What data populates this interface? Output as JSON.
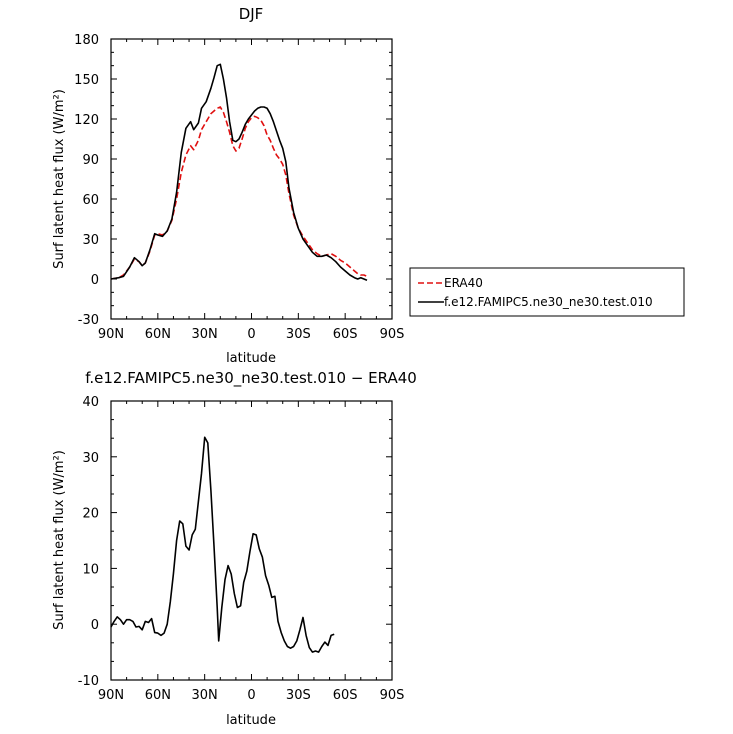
{
  "chart_data": [
    {
      "type": "line",
      "title": "DJF",
      "xlabel": "latitude",
      "ylabel": "Surf latent heat flux (W/m²)",
      "xlim": [
        -90,
        90
      ],
      "ylim": [
        -30,
        180
      ],
      "x_ticks": [
        {
          "value": -90,
          "label": "90N"
        },
        {
          "value": -60,
          "label": "60N"
        },
        {
          "value": -30,
          "label": "30N"
        },
        {
          "value": 0,
          "label": "0"
        },
        {
          "value": 30,
          "label": "30S"
        },
        {
          "value": 60,
          "label": "60S"
        },
        {
          "value": 90,
          "label": "90S"
        }
      ],
      "y_ticks": [
        -30,
        0,
        30,
        60,
        90,
        120,
        150,
        180
      ],
      "legend_position": "right",
      "series": [
        {
          "name": "ERA40",
          "color": "#e01010",
          "dash": "dashed",
          "points": [
            [
              -90,
              0
            ],
            [
              -85,
              1
            ],
            [
              -82,
              3
            ],
            [
              -78,
              9
            ],
            [
              -75,
              15
            ],
            [
              -72,
              13
            ],
            [
              -70,
              10
            ],
            [
              -68,
              12
            ],
            [
              -65,
              21
            ],
            [
              -62,
              33
            ],
            [
              -60,
              34
            ],
            [
              -57,
              33
            ],
            [
              -54,
              36
            ],
            [
              -51,
              44
            ],
            [
              -48,
              60
            ],
            [
              -45,
              80
            ],
            [
              -42,
              93
            ],
            [
              -39,
              100
            ],
            [
              -37,
              97
            ],
            [
              -34,
              104
            ],
            [
              -32,
              112
            ],
            [
              -29,
              118
            ],
            [
              -26,
              124
            ],
            [
              -24,
              126
            ],
            [
              -22,
              128
            ],
            [
              -20,
              129
            ],
            [
              -18,
              125
            ],
            [
              -16,
              118
            ],
            [
              -14,
              110
            ],
            [
              -12,
              100
            ],
            [
              -10,
              96
            ],
            [
              -8,
              98
            ],
            [
              -6,
              105
            ],
            [
              -4,
              113
            ],
            [
              -2,
              118
            ],
            [
              0,
              121
            ],
            [
              2,
              122
            ],
            [
              4,
              121
            ],
            [
              6,
              119
            ],
            [
              8,
              115
            ],
            [
              10,
              108
            ],
            [
              12,
              104
            ],
            [
              14,
              98
            ],
            [
              16,
              93
            ],
            [
              18,
              90
            ],
            [
              20,
              86
            ],
            [
              22,
              78
            ],
            [
              24,
              64
            ],
            [
              27,
              48
            ],
            [
              30,
              38
            ],
            [
              33,
              32
            ],
            [
              36,
              27
            ],
            [
              39,
              22
            ],
            [
              42,
              19
            ],
            [
              45,
              17
            ],
            [
              48,
              18
            ],
            [
              51,
              19
            ],
            [
              54,
              17
            ],
            [
              57,
              14
            ],
            [
              60,
              12
            ],
            [
              63,
              9
            ],
            [
              66,
              6
            ],
            [
              68,
              4
            ],
            [
              70,
              3
            ],
            [
              72,
              3
            ],
            [
              74,
              2
            ]
          ]
        },
        {
          "name": "f.e12.FAMIPC5.ne30_ne30.test.010",
          "color": "#000000",
          "dash": "solid",
          "points": [
            [
              -90,
              0
            ],
            [
              -85,
              1
            ],
            [
              -82,
              2
            ],
            [
              -78,
              9
            ],
            [
              -75,
              16
            ],
            [
              -72,
              13
            ],
            [
              -70,
              10
            ],
            [
              -68,
              12
            ],
            [
              -65,
              22
            ],
            [
              -62,
              34
            ],
            [
              -60,
              33
            ],
            [
              -57,
              32
            ],
            [
              -54,
              36
            ],
            [
              -51,
              45
            ],
            [
              -48,
              65
            ],
            [
              -45,
              95
            ],
            [
              -42,
              113
            ],
            [
              -39,
              118
            ],
            [
              -37,
              112
            ],
            [
              -34,
              117
            ],
            [
              -32,
              128
            ],
            [
              -29,
              133
            ],
            [
              -26,
              143
            ],
            [
              -24,
              151
            ],
            [
              -22,
              160
            ],
            [
              -20,
              161
            ],
            [
              -18,
              150
            ],
            [
              -16,
              136
            ],
            [
              -14,
              118
            ],
            [
              -12,
              104
            ],
            [
              -10,
              103
            ],
            [
              -8,
              105
            ],
            [
              -6,
              110
            ],
            [
              -4,
              116
            ],
            [
              -2,
              120
            ],
            [
              0,
              123
            ],
            [
              2,
              126
            ],
            [
              4,
              128
            ],
            [
              6,
              129
            ],
            [
              8,
              129
            ],
            [
              10,
              128
            ],
            [
              12,
              124
            ],
            [
              14,
              118
            ],
            [
              16,
              111
            ],
            [
              18,
              104
            ],
            [
              20,
              98
            ],
            [
              22,
              88
            ],
            [
              24,
              68
            ],
            [
              27,
              50
            ],
            [
              30,
              38
            ],
            [
              33,
              30
            ],
            [
              36,
              25
            ],
            [
              39,
              20
            ],
            [
              42,
              17
            ],
            [
              45,
              17
            ],
            [
              48,
              18
            ],
            [
              51,
              16
            ],
            [
              54,
              13
            ],
            [
              57,
              9
            ],
            [
              60,
              6
            ],
            [
              63,
              3
            ],
            [
              66,
              1
            ],
            [
              68,
              0
            ],
            [
              70,
              1
            ],
            [
              72,
              0
            ],
            [
              74,
              -1
            ]
          ]
        }
      ]
    },
    {
      "type": "line",
      "title": "f.e12.FAMIPC5.ne30_ne30.test.010 − ERA40",
      "xlabel": "latitude",
      "ylabel": "Surf latent heat flux (W/m²)",
      "xlim": [
        -90,
        90
      ],
      "ylim": [
        -10,
        40
      ],
      "x_ticks": [
        {
          "value": -90,
          "label": "90N"
        },
        {
          "value": -60,
          "label": "60N"
        },
        {
          "value": -30,
          "label": "30N"
        },
        {
          "value": 0,
          "label": "0"
        },
        {
          "value": 30,
          "label": "30S"
        },
        {
          "value": 60,
          "label": "60S"
        },
        {
          "value": 90,
          "label": "90S"
        }
      ],
      "y_ticks": [
        -10,
        0,
        10,
        20,
        30,
        40
      ],
      "series": [
        {
          "color": "#000000",
          "dash": "solid",
          "points": [
            [
              -90,
              -0.5
            ],
            [
              -88,
              0.5
            ],
            [
              -86,
              1.3
            ],
            [
              -84,
              0.8
            ],
            [
              -82,
              0
            ],
            [
              -80,
              0.8
            ],
            [
              -78,
              0.8
            ],
            [
              -76,
              0.5
            ],
            [
              -74,
              -0.5
            ],
            [
              -72,
              -0.4
            ],
            [
              -70,
              -1
            ],
            [
              -68,
              0.5
            ],
            [
              -66,
              0.3
            ],
            [
              -64,
              1
            ],
            [
              -62,
              -1.5
            ],
            [
              -60,
              -1.6
            ],
            [
              -58,
              -2
            ],
            [
              -56,
              -1.6
            ],
            [
              -54,
              0
            ],
            [
              -52,
              4
            ],
            [
              -50,
              9
            ],
            [
              -48,
              15
            ],
            [
              -46,
              18.5
            ],
            [
              -44,
              18
            ],
            [
              -42,
              14
            ],
            [
              -40,
              13.3
            ],
            [
              -38,
              16
            ],
            [
              -36,
              17
            ],
            [
              -34,
              22
            ],
            [
              -32,
              27
            ],
            [
              -30,
              33.5
            ],
            [
              -28,
              32.5
            ],
            [
              -26,
              24
            ],
            [
              -24,
              14
            ],
            [
              -22,
              3
            ],
            [
              -21,
              -3
            ],
            [
              -19,
              3
            ],
            [
              -17,
              8
            ],
            [
              -15,
              10.5
            ],
            [
              -13,
              9
            ],
            [
              -11,
              5.5
            ],
            [
              -9,
              3
            ],
            [
              -7,
              3.3
            ],
            [
              -5,
              7.5
            ],
            [
              -3,
              9.5
            ],
            [
              -1,
              13
            ],
            [
              1,
              16.2
            ],
            [
              3,
              16
            ],
            [
              5,
              13.5
            ],
            [
              7,
              12
            ],
            [
              9,
              8.7
            ],
            [
              11,
              7
            ],
            [
              13,
              4.8
            ],
            [
              15,
              5
            ],
            [
              17,
              0.5
            ],
            [
              19,
              -1.5
            ],
            [
              21,
              -3
            ],
            [
              23,
              -4
            ],
            [
              25,
              -4.3
            ],
            [
              27,
              -4
            ],
            [
              29,
              -3
            ],
            [
              31,
              -1
            ],
            [
              33,
              1.2
            ],
            [
              35,
              -2
            ],
            [
              37,
              -4.2
            ],
            [
              39,
              -5
            ],
            [
              41,
              -4.8
            ],
            [
              43,
              -5
            ],
            [
              45,
              -4
            ],
            [
              47,
              -3.2
            ],
            [
              49,
              -3.8
            ],
            [
              51,
              -2
            ],
            [
              53,
              -1.8
            ]
          ]
        }
      ]
    }
  ]
}
